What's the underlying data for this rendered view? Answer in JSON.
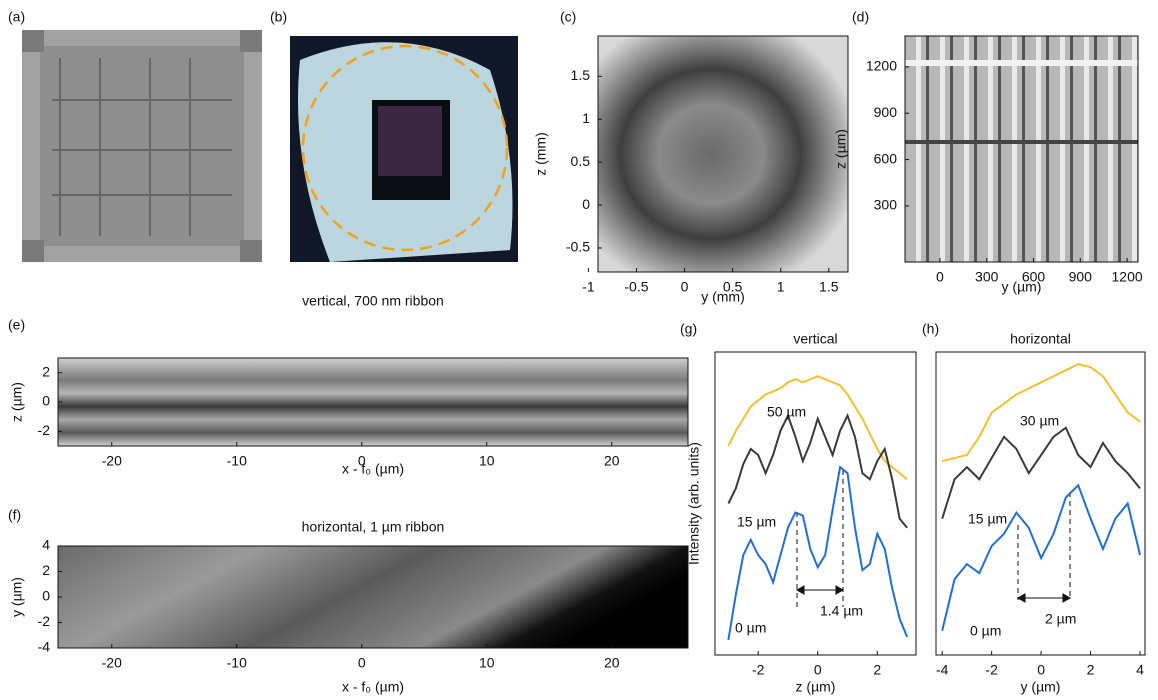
{
  "images": [
    {
      "panel": "(a)"
    },
    {
      "panel": "(b)"
    }
  ],
  "chart_data": [
    {
      "type": "image",
      "panel": "(c)",
      "xlabel": "y (mm)",
      "ylabel": "z (mm)",
      "xlim": [
        -0.9,
        1.7
      ],
      "xticks": [
        -1,
        -0.5,
        0,
        0.5,
        1,
        1.5
      ],
      "ylim": [
        -0.78,
        1.97
      ],
      "yticks": [
        -0.5,
        0,
        0.5,
        1,
        1.5
      ]
    },
    {
      "type": "image",
      "panel": "(d)",
      "xlabel": "y (µm)",
      "ylabel": "z (µm)",
      "xlim": [
        -224,
        1270
      ],
      "xticks": [
        0,
        300,
        600,
        900,
        1200
      ],
      "ylim": [
        -63,
        1400
      ],
      "yticks": [
        300,
        600,
        900,
        1200
      ]
    },
    {
      "type": "image",
      "panel": "(e)",
      "title": "vertical, 700 nm ribbon",
      "xlabel": "x - f₀ (µm)",
      "ylabel": "z (µm)",
      "xlim": [
        -24.3,
        26.1
      ],
      "xticks": [
        -20,
        -10,
        0,
        10,
        20
      ],
      "ylim": [
        -3,
        3
      ],
      "yticks": [
        -2,
        0,
        2
      ]
    },
    {
      "type": "image",
      "panel": "(f)",
      "title": "horizontal, 1 µm ribbon",
      "xlabel": "x - f₀ (µm)",
      "ylabel": "y (µm)",
      "xlim": [
        -24.3,
        26.1
      ],
      "xticks": [
        -20,
        -10,
        0,
        10,
        20
      ],
      "ylim": [
        -4,
        4
      ],
      "yticks": [
        -4,
        -2,
        0,
        2,
        4
      ]
    },
    {
      "type": "line",
      "panel": "(g)",
      "title": "vertical",
      "xlabel": "z (µm)",
      "ylabel": "Intensity (arb. units)",
      "xlim": [
        -3.45,
        3.3
      ],
      "xticks": [
        -2,
        0,
        2
      ],
      "ylim": [
        0,
        1
      ],
      "x": [
        -3,
        -2.75,
        -2.5,
        -2.25,
        -2,
        -1.75,
        -1.5,
        -1.25,
        -1,
        -0.75,
        -0.5,
        -0.25,
        0,
        0.25,
        0.5,
        0.75,
        1,
        1.25,
        1.5,
        1.75,
        2,
        2.25,
        2.5,
        2.75,
        3
      ],
      "series": [
        {
          "color": "#f2c12e",
          "values": [
            0.69,
            0.74,
            0.78,
            0.82,
            0.84,
            0.86,
            0.87,
            0.88,
            0.9,
            0.91,
            0.9,
            0.91,
            0.92,
            0.91,
            0.9,
            0.89,
            0.86,
            0.82,
            0.78,
            0.73,
            0.68,
            0.64,
            0.62,
            0.6,
            0.58
          ]
        },
        {
          "color": "#3a3a3a",
          "values": [
            0.5,
            0.55,
            0.63,
            0.68,
            0.66,
            0.6,
            0.66,
            0.74,
            0.79,
            0.72,
            0.64,
            0.7,
            0.78,
            0.72,
            0.66,
            0.74,
            0.79,
            0.72,
            0.6,
            0.58,
            0.64,
            0.68,
            0.58,
            0.45,
            0.42
          ]
        },
        {
          "color": "#1f6fd6",
          "values": [
            0.05,
            0.2,
            0.33,
            0.38,
            0.33,
            0.3,
            0.24,
            0.33,
            0.42,
            0.47,
            0.46,
            0.35,
            0.29,
            0.33,
            0.48,
            0.62,
            0.6,
            0.42,
            0.28,
            0.3,
            0.4,
            0.35,
            0.22,
            0.12,
            0.06
          ]
        }
      ],
      "annotations": [
        "50 µm",
        "15 µm",
        "0 µm",
        "1.4 µm"
      ]
    },
    {
      "type": "line",
      "panel": "(h)",
      "title": "horizontal",
      "xlabel": "y (µm)",
      "xlim": [
        -4.25,
        4.2
      ],
      "xticks": [
        -4,
        -2,
        0,
        2,
        4
      ],
      "ylim": [
        0,
        1
      ],
      "x": [
        -4,
        -3.5,
        -3,
        -2.5,
        -2,
        -1.5,
        -1,
        -0.5,
        0,
        0.5,
        1,
        1.5,
        2,
        2.5,
        3,
        3.5,
        4
      ],
      "series": [
        {
          "color": "#f2c12e",
          "values": [
            0.64,
            0.65,
            0.66,
            0.72,
            0.8,
            0.83,
            0.86,
            0.88,
            0.9,
            0.92,
            0.94,
            0.96,
            0.95,
            0.92,
            0.86,
            0.8,
            0.77
          ]
        },
        {
          "color": "#3a3a3a",
          "values": [
            0.45,
            0.58,
            0.62,
            0.58,
            0.65,
            0.72,
            0.68,
            0.6,
            0.66,
            0.72,
            0.75,
            0.66,
            0.62,
            0.7,
            0.64,
            0.6,
            0.55
          ]
        },
        {
          "color": "#1f6fd6",
          "values": [
            0.08,
            0.25,
            0.3,
            0.27,
            0.36,
            0.4,
            0.47,
            0.42,
            0.32,
            0.4,
            0.52,
            0.56,
            0.45,
            0.35,
            0.45,
            0.5,
            0.33
          ]
        }
      ],
      "annotations": [
        "30 µm",
        "15 µm",
        "0 µm",
        "2 µm"
      ]
    }
  ]
}
